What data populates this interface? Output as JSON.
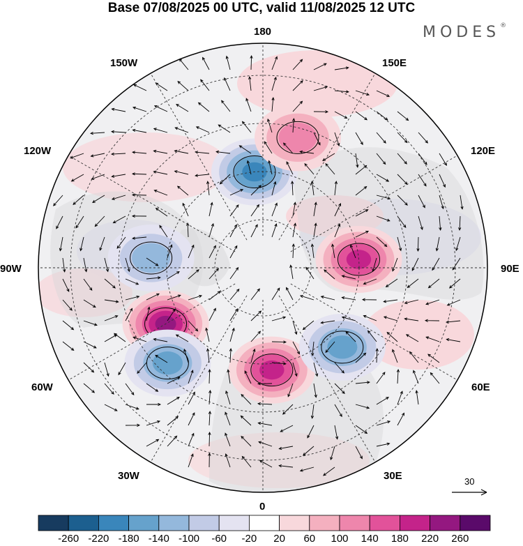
{
  "title": "Base 07/08/2025 00 UTC, valid 11/08/2025 12 UTC",
  "brand": {
    "name": "MODES",
    "mark": "®"
  },
  "longitude_labels": {
    "lon_180": "180",
    "lon_150e": "150E",
    "lon_120e": "120E",
    "lon_90e": "90E",
    "lon_60e": "60E",
    "lon_30e": "30E",
    "lon_0": "0",
    "lon_30w": "30W",
    "lon_60w": "60W",
    "lon_90w": "90W",
    "lon_120w": "120W",
    "lon_150w": "150W"
  },
  "vector_scale": {
    "label": "30"
  },
  "colorbar": {
    "ticks": [
      "-260",
      "-220",
      "-180",
      "-140",
      "-100",
      "-60",
      "-20",
      "20",
      "60",
      "100",
      "140",
      "180",
      "220",
      "260"
    ],
    "colors": [
      "#173b5f",
      "#1c5f8f",
      "#3a86bb",
      "#66a2cc",
      "#94b8dc",
      "#c2cbe6",
      "#e4e3f1",
      "#ffffff",
      "#f8d8dc",
      "#f4b0bf",
      "#ee86ac",
      "#e2529a",
      "#c4238a",
      "#941880",
      "#5a0a6a"
    ]
  },
  "anomaly_centers": [
    {
      "name": "aleutian-low",
      "lon": -175,
      "lat": 60,
      "value": -200
    },
    {
      "name": "kamchatka-high",
      "lon": 165,
      "lat": 48,
      "value": 120
    },
    {
      "name": "hudson-bay-high",
      "lon": -60,
      "lat": 55,
      "value": 230
    },
    {
      "name": "canada-low",
      "lon": -95,
      "lat": 55,
      "value": -120
    },
    {
      "name": "atlantic-low",
      "lon": -45,
      "lat": 48,
      "value": -150
    },
    {
      "name": "europe-high",
      "lon": 5,
      "lat": 58,
      "value": 180
    },
    {
      "name": "russia-low",
      "lon": 45,
      "lat": 55,
      "value": -150
    },
    {
      "name": "siberia-high",
      "lon": 95,
      "lat": 60,
      "value": 180
    }
  ],
  "icons": {
    "vector-arrow": "arrow-icon"
  }
}
